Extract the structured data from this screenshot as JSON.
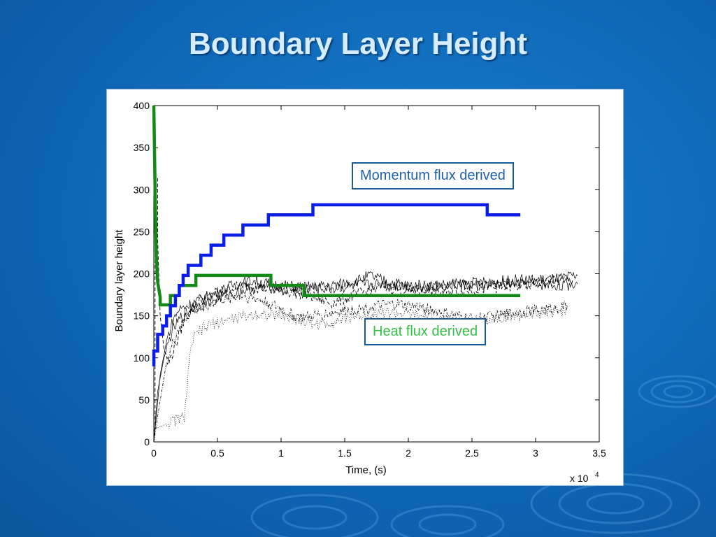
{
  "slide": {
    "title": "Boundary Layer Height"
  },
  "chart_data": {
    "type": "line",
    "xlabel": "Time, (s)",
    "ylabel": "Boundary layer height",
    "x_exponent_label": "x 10",
    "x_exponent_power": "4",
    "xlim": [
      0,
      3.5
    ],
    "ylim": [
      0,
      400
    ],
    "x_ticks": [
      "0",
      "0.5",
      "1",
      "1.5",
      "2",
      "2.5",
      "3",
      "3.5"
    ],
    "y_ticks": [
      "0",
      "50",
      "100",
      "150",
      "200",
      "250",
      "300",
      "350",
      "400"
    ],
    "grid": false,
    "annotations": [
      {
        "text": "Momentum flux derived",
        "color": "#1f5fa6"
      },
      {
        "text": "Heat flux derived",
        "color": "#33c043"
      }
    ],
    "series": [
      {
        "color": "#0b1ee8",
        "style": "thick-step",
        "points": [
          [
            0,
            90
          ],
          [
            0,
            108
          ],
          [
            0.03,
            108
          ],
          [
            0.03,
            128
          ],
          [
            0.07,
            128
          ],
          [
            0.07,
            138
          ],
          [
            0.1,
            138
          ],
          [
            0.1,
            150
          ],
          [
            0.13,
            150
          ],
          [
            0.13,
            162
          ],
          [
            0.17,
            162
          ],
          [
            0.17,
            174
          ],
          [
            0.2,
            174
          ],
          [
            0.2,
            186
          ],
          [
            0.23,
            186
          ],
          [
            0.23,
            198
          ],
          [
            0.27,
            198
          ],
          [
            0.27,
            210
          ],
          [
            0.37,
            210
          ],
          [
            0.37,
            222
          ],
          [
            0.45,
            222
          ],
          [
            0.45,
            234
          ],
          [
            0.55,
            234
          ],
          [
            0.55,
            246
          ],
          [
            0.7,
            246
          ],
          [
            0.7,
            258
          ],
          [
            0.9,
            258
          ],
          [
            0.9,
            270
          ],
          [
            1.25,
            270
          ],
          [
            1.25,
            282
          ],
          [
            2.62,
            282
          ],
          [
            2.62,
            270
          ],
          [
            2.88,
            270
          ]
        ]
      },
      {
        "color": "#138a17",
        "style": "thick-step",
        "points": [
          [
            0,
            400
          ],
          [
            0.01,
            300
          ],
          [
            0.02,
            220
          ],
          [
            0.03,
            190
          ],
          [
            0.05,
            172
          ],
          [
            0.05,
            163
          ],
          [
            0.13,
            163
          ],
          [
            0.13,
            174
          ],
          [
            0.2,
            174
          ],
          [
            0.2,
            186
          ],
          [
            0.33,
            186
          ],
          [
            0.33,
            198
          ],
          [
            0.92,
            198
          ],
          [
            0.92,
            186
          ],
          [
            1.18,
            186
          ],
          [
            1.18,
            174
          ],
          [
            2.88,
            174
          ]
        ]
      },
      {
        "color": "#000000",
        "style": "dashed",
        "points": [
          [
            0,
            0
          ],
          [
            0.01,
            20
          ],
          [
            0.01,
            315
          ],
          [
            0.03,
            315
          ],
          [
            0.03,
            240
          ],
          [
            0.05,
            150
          ],
          [
            0.08,
            110
          ],
          [
            0.12,
            95
          ],
          [
            0.18,
            120
          ],
          [
            0.25,
            150
          ],
          [
            0.35,
            168
          ],
          [
            0.5,
            178
          ],
          [
            0.7,
            186
          ],
          [
            0.9,
            183
          ],
          [
            1.0,
            180
          ],
          [
            1.2,
            175
          ],
          [
            1.4,
            165
          ],
          [
            1.6,
            176
          ],
          [
            1.8,
            185
          ],
          [
            2.0,
            180
          ],
          [
            2.3,
            178
          ],
          [
            2.6,
            183
          ],
          [
            2.9,
            186
          ],
          [
            3.1,
            190
          ],
          [
            3.3,
            193
          ]
        ]
      },
      {
        "color": "#000000",
        "style": "solid-noisy",
        "points": [
          [
            0,
            0
          ],
          [
            0.02,
            30
          ],
          [
            0.05,
            80
          ],
          [
            0.1,
            120
          ],
          [
            0.15,
            145
          ],
          [
            0.2,
            158
          ],
          [
            0.3,
            165
          ],
          [
            0.4,
            172
          ],
          [
            0.5,
            178
          ],
          [
            0.6,
            185
          ],
          [
            0.7,
            190
          ],
          [
            0.8,
            192
          ],
          [
            0.9,
            188
          ],
          [
            1.0,
            186
          ],
          [
            1.2,
            184
          ],
          [
            1.4,
            186
          ],
          [
            1.6,
            192
          ],
          [
            1.7,
            198
          ],
          [
            1.8,
            192
          ],
          [
            2.0,
            186
          ],
          [
            2.2,
            186
          ],
          [
            2.4,
            188
          ],
          [
            2.6,
            190
          ],
          [
            2.8,
            192
          ],
          [
            3.0,
            193
          ],
          [
            3.2,
            194
          ],
          [
            3.33,
            198
          ]
        ]
      },
      {
        "color": "#000000",
        "style": "solid-noisy",
        "points": [
          [
            0,
            0
          ],
          [
            0.03,
            60
          ],
          [
            0.08,
            100
          ],
          [
            0.14,
            130
          ],
          [
            0.22,
            150
          ],
          [
            0.32,
            160
          ],
          [
            0.45,
            168
          ],
          [
            0.6,
            176
          ],
          [
            0.75,
            182
          ],
          [
            0.9,
            184
          ],
          [
            1.05,
            182
          ],
          [
            1.2,
            183
          ],
          [
            1.4,
            182
          ],
          [
            1.6,
            186
          ],
          [
            1.8,
            188
          ],
          [
            2.0,
            184
          ],
          [
            2.2,
            185
          ],
          [
            2.4,
            187
          ],
          [
            2.6,
            186
          ],
          [
            2.8,
            188
          ],
          [
            3.0,
            187
          ],
          [
            3.2,
            186
          ],
          [
            3.33,
            188
          ]
        ]
      },
      {
        "color": "#000000",
        "style": "dashdot",
        "points": [
          [
            0,
            0
          ],
          [
            0.04,
            40
          ],
          [
            0.1,
            95
          ],
          [
            0.18,
            130
          ],
          [
            0.28,
            152
          ],
          [
            0.4,
            162
          ],
          [
            0.55,
            170
          ],
          [
            0.7,
            174
          ],
          [
            0.85,
            168
          ],
          [
            1.0,
            158
          ],
          [
            1.1,
            150
          ],
          [
            1.2,
            148
          ],
          [
            1.35,
            152
          ],
          [
            1.5,
            156
          ],
          [
            1.7,
            160
          ],
          [
            1.9,
            164
          ],
          [
            2.1,
            160
          ],
          [
            2.3,
            152
          ],
          [
            2.5,
            146
          ],
          [
            2.7,
            150
          ],
          [
            2.9,
            155
          ],
          [
            3.1,
            158
          ],
          [
            3.25,
            162
          ]
        ]
      },
      {
        "color": "#000000",
        "style": "dotted",
        "points": [
          [
            0,
            15
          ],
          [
            0.08,
            20
          ],
          [
            0.16,
            25
          ],
          [
            0.24,
            30
          ],
          [
            0.27,
            80
          ],
          [
            0.3,
            120
          ],
          [
            0.36,
            132
          ],
          [
            0.45,
            140
          ],
          [
            0.6,
            146
          ],
          [
            0.8,
            152
          ],
          [
            1.0,
            150
          ],
          [
            1.15,
            144
          ],
          [
            1.3,
            140
          ],
          [
            1.45,
            144
          ],
          [
            1.6,
            150
          ],
          [
            1.8,
            154
          ],
          [
            2.0,
            152
          ],
          [
            2.2,
            146
          ],
          [
            2.4,
            142
          ],
          [
            2.6,
            146
          ],
          [
            2.8,
            150
          ],
          [
            3.0,
            152
          ],
          [
            3.2,
            156
          ],
          [
            3.25,
            158
          ]
        ]
      }
    ]
  }
}
